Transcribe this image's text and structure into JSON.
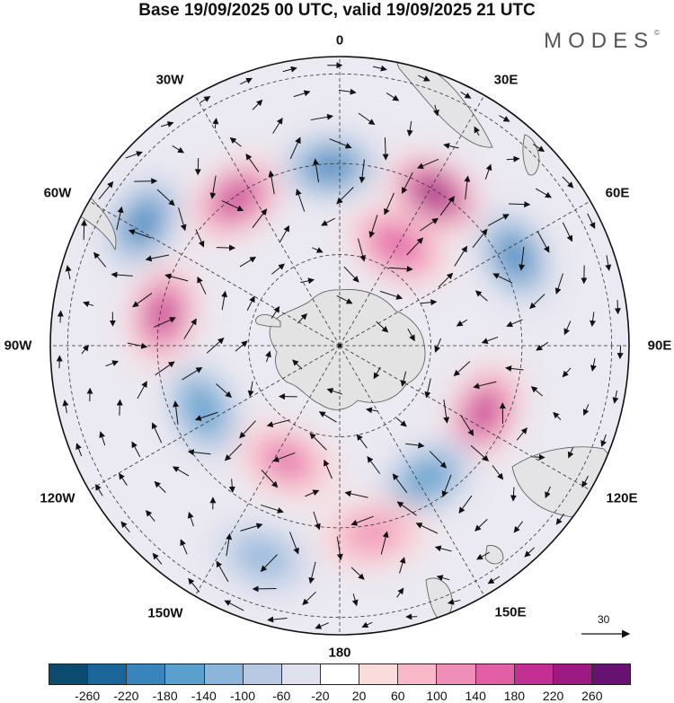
{
  "header": {
    "title": "Base 19/09/2025 00 UTC, valid 19/09/2025 21 UTC",
    "brand": "MODES",
    "brand_mark": "©"
  },
  "map": {
    "projection": "south-polar-stereographic",
    "longitude_labels": [
      {
        "key": "lon0",
        "text": "0"
      },
      {
        "key": "lon30e",
        "text": "30E"
      },
      {
        "key": "lon60e",
        "text": "60E"
      },
      {
        "key": "lon90e",
        "text": "90E"
      },
      {
        "key": "lon120e",
        "text": "120E"
      },
      {
        "key": "lon150e",
        "text": "150E"
      },
      {
        "key": "lon180",
        "text": "180"
      },
      {
        "key": "lon150w",
        "text": "150W"
      },
      {
        "key": "lon120w",
        "text": "120W"
      },
      {
        "key": "lon90w",
        "text": "90W"
      },
      {
        "key": "lon60w",
        "text": "60W"
      },
      {
        "key": "lon30w",
        "text": "30W"
      }
    ],
    "anomaly_centers": [
      {
        "name": "positive-anomaly-southern-atlantic-west",
        "sign": "positive",
        "lon_deg": -35,
        "colat_frac": 0.62,
        "value": 200
      },
      {
        "name": "negative-anomaly-weddell-north",
        "sign": "negative",
        "lon_deg": -3,
        "colat_frac": 0.62,
        "value": -190
      },
      {
        "name": "positive-anomaly-south-africa",
        "sign": "positive",
        "lon_deg": 32,
        "colat_frac": 0.62,
        "value": 250
      },
      {
        "name": "positive-anomaly-south-africa-lobe",
        "sign": "positive",
        "lon_deg": 30,
        "colat_frac": 0.4,
        "value": 170
      },
      {
        "name": "negative-anomaly-indian-west",
        "sign": "negative",
        "lon_deg": 63,
        "colat_frac": 0.68,
        "value": -190
      },
      {
        "name": "positive-anomaly-indian-east",
        "sign": "positive",
        "lon_deg": 115,
        "colat_frac": 0.55,
        "value": 200
      },
      {
        "name": "negative-anomaly-south-australia",
        "sign": "negative",
        "lon_deg": 147,
        "colat_frac": 0.55,
        "value": -180
      },
      {
        "name": "positive-anomaly-ross-sea",
        "sign": "positive",
        "lon_deg": 170,
        "colat_frac": 0.66,
        "value": 100
      },
      {
        "name": "negative-anomaly-south-pacific",
        "sign": "negative",
        "lon_deg": -160,
        "colat_frac": 0.78,
        "value": -120
      },
      {
        "name": "positive-anomaly-pacific-central",
        "sign": "positive",
        "lon_deg": -155,
        "colat_frac": 0.44,
        "value": 140
      },
      {
        "name": "negative-anomaly-amundsen",
        "sign": "negative",
        "lon_deg": -115,
        "colat_frac": 0.52,
        "value": -180
      },
      {
        "name": "positive-anomaly-drake-passage",
        "sign": "positive",
        "lon_deg": -80,
        "colat_frac": 0.62,
        "value": 200
      },
      {
        "name": "negative-anomaly-south-america",
        "sign": "negative",
        "lon_deg": -58,
        "colat_frac": 0.8,
        "value": -190
      }
    ],
    "wind_reference": {
      "label": "30",
      "unit_value": 30
    }
  },
  "colorbar": {
    "colors": [
      "#0d4a70",
      "#1a6698",
      "#3984bc",
      "#5b9fcc",
      "#8bb6da",
      "#b9c9e3",
      "#dfe1ef",
      "#ffffff",
      "#fbdcdc",
      "#f8b8c8",
      "#ef8fb7",
      "#e25fa6",
      "#c42f93",
      "#9c1a82",
      "#671170"
    ],
    "ticks": [
      "-260",
      "-220",
      "-180",
      "-140",
      "-100",
      "-60",
      "-20",
      "20",
      "60",
      "100",
      "140",
      "180",
      "220",
      "260"
    ]
  }
}
